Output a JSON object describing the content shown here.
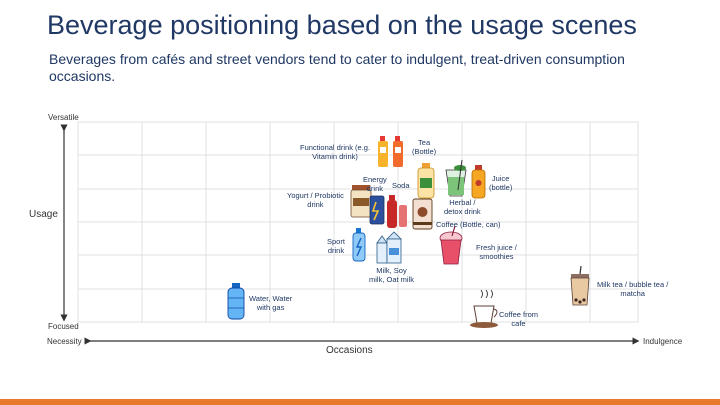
{
  "slide": {
    "title": "Beverage positioning based on the usage scenes",
    "subtitle": "Beverages from cafés and street vendors tend to cater to indulgent, treat-driven consumption occasions."
  },
  "axes": {
    "y_title": "Usage",
    "y_top": "Versatile",
    "y_bottom": "Focused",
    "x_title": "Occasions",
    "x_left": "Necessity",
    "x_right": "Indulgence"
  },
  "items": {
    "functional": "Functional drink (e.g.\nVitamin drink)",
    "tea": "Tea\n(Bottle)",
    "energy": "Energy\ndrink",
    "soda": "Soda",
    "juice": "Juice\n(bottle)",
    "yogurt": "Yogurt / Probiotic\ndrink",
    "herbal": "Herbal /\ndetox drink",
    "coffee_can": "Coffee (Bottle, can)",
    "sport": "Sport\ndrink",
    "milk": "Milk, Soy\nmilk, Oat milk",
    "fresh_juice": "Fresh juice /\nsmoothies",
    "milk_tea": "Milk tea / bubble tea /\nmatcha",
    "water": "Water, Water\nwith gas",
    "coffee_cafe": "Coffee from\ncafe"
  },
  "colors": {
    "title": "#1f3864",
    "accent_bar": "#e8782a",
    "grid": "#d9d9d9"
  }
}
